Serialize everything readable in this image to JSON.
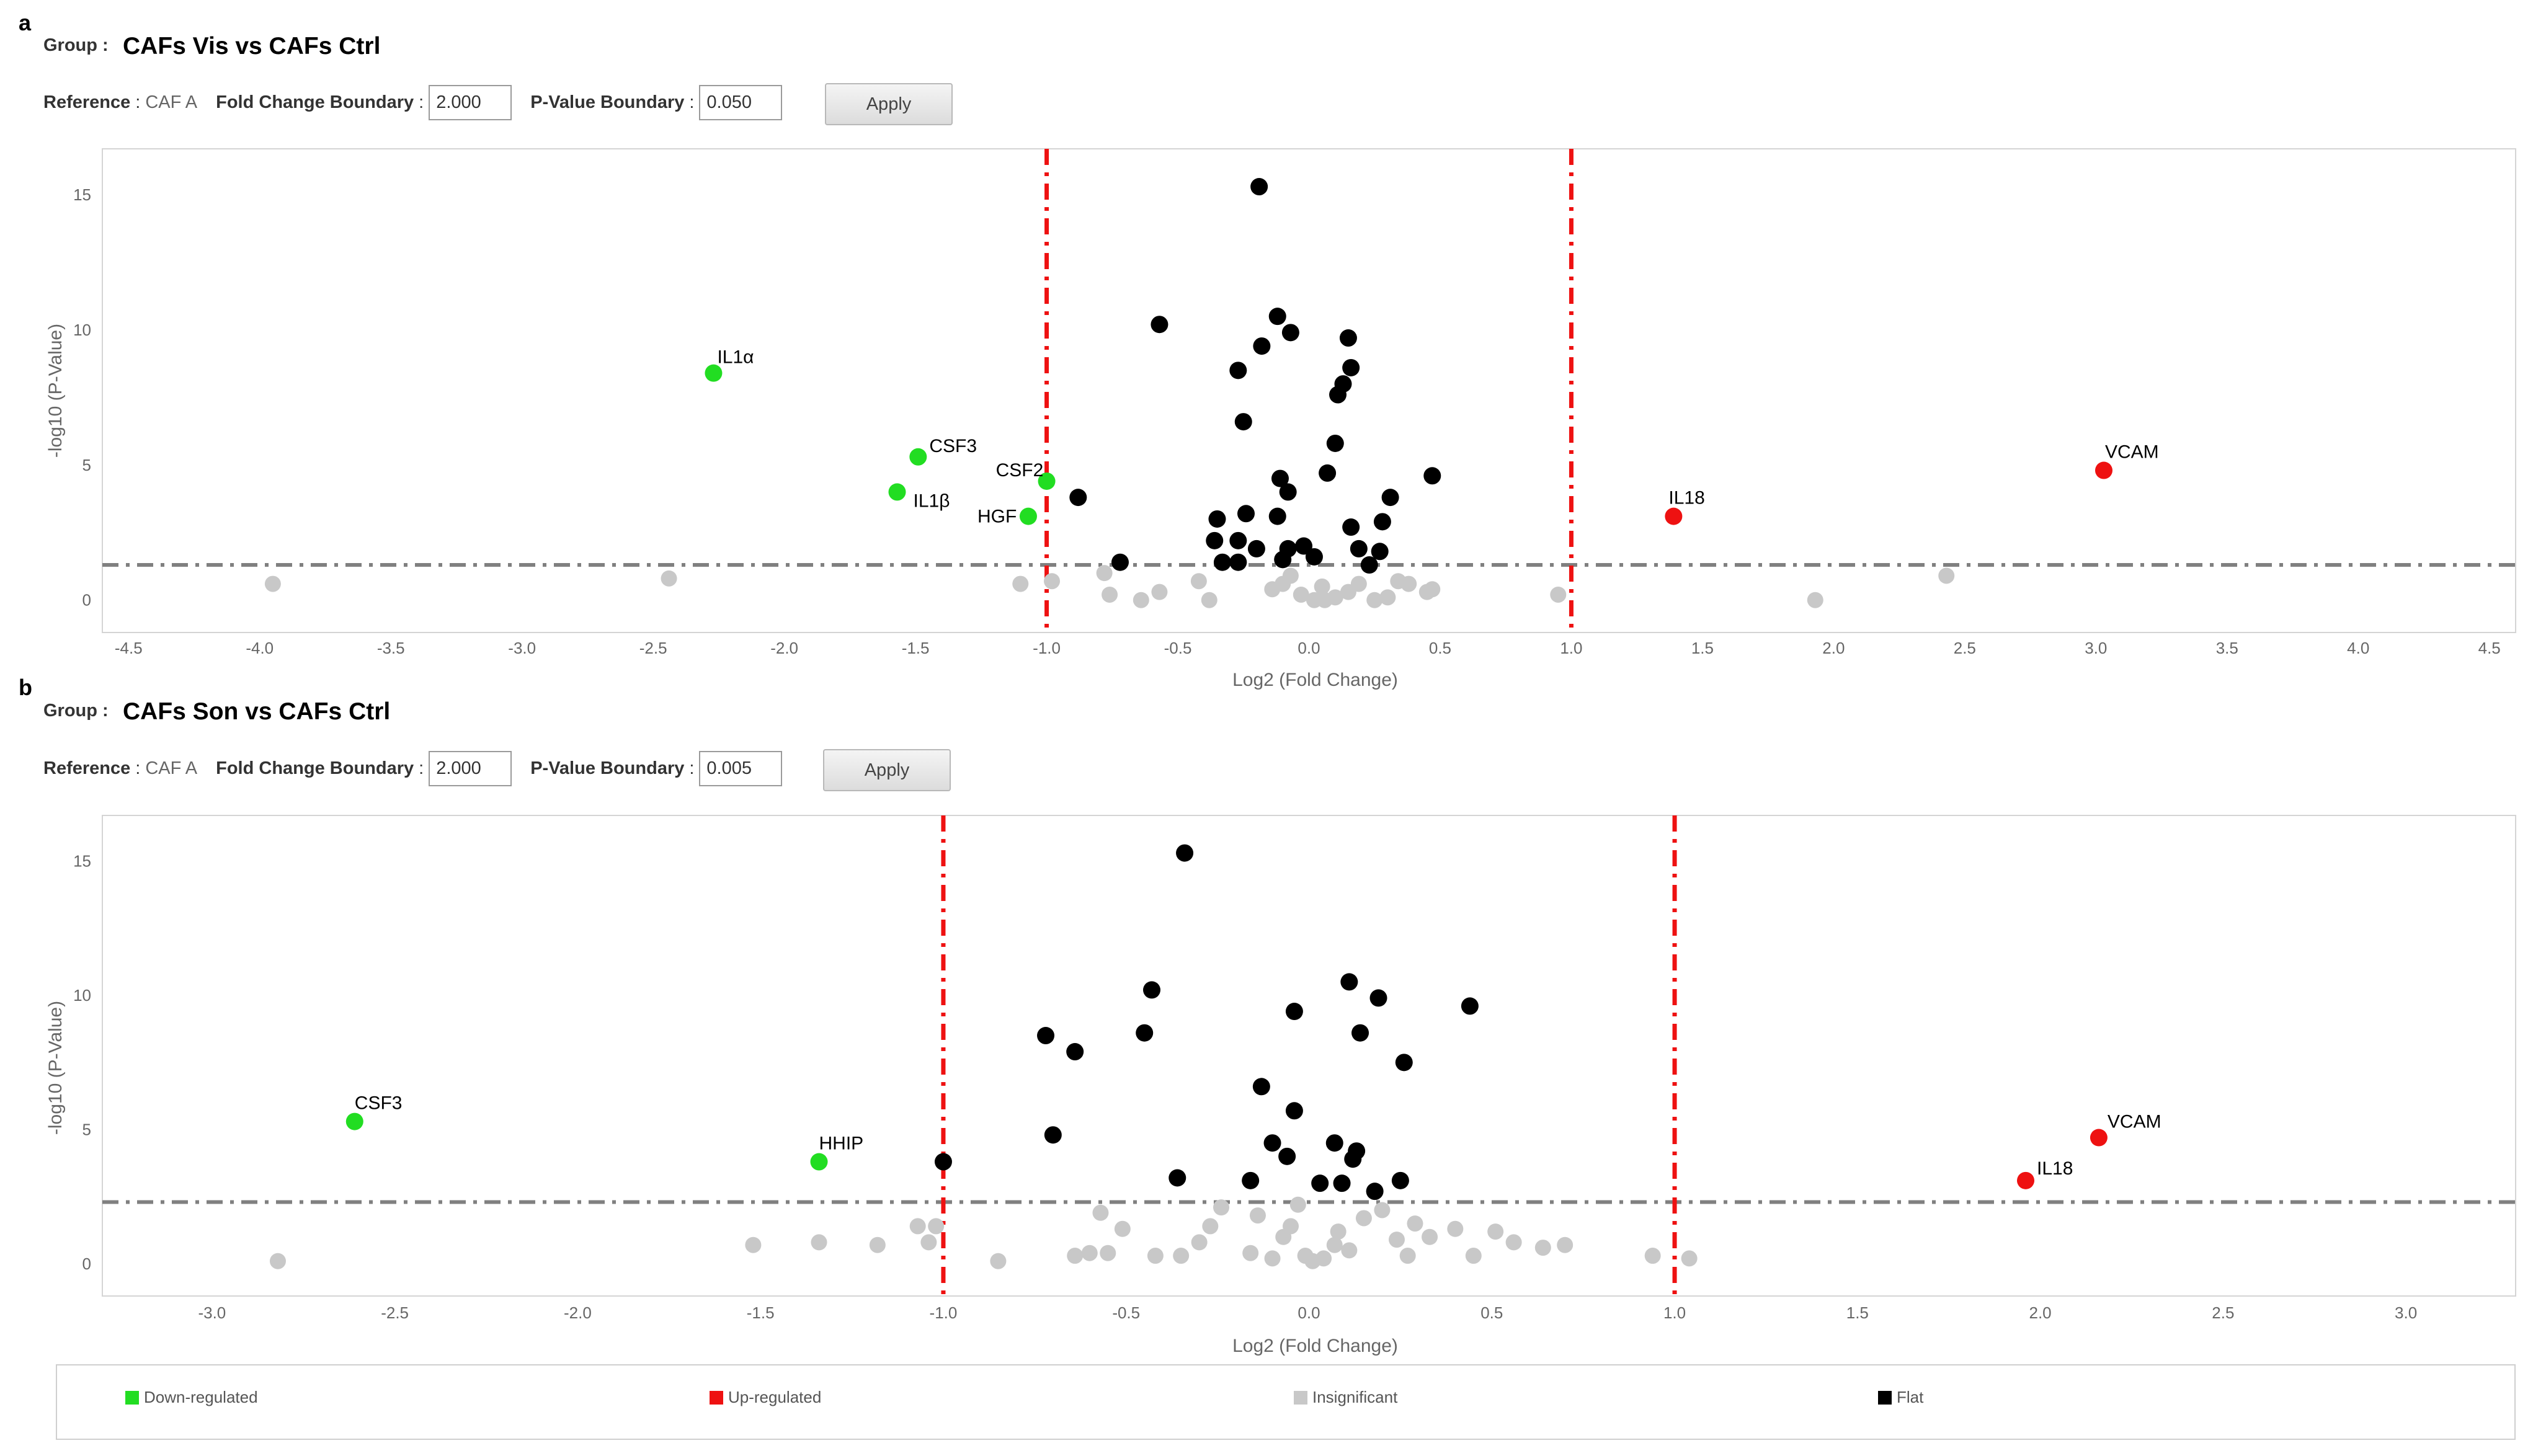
{
  "colors": {
    "down": "#22dd22",
    "up": "#ee1111",
    "insignificant": "#c8c8c8",
    "flat": "#000000",
    "boundary": "#ee1111",
    "threshold": "#808080"
  },
  "panels": [
    {
      "letter": "a",
      "group_label": "Group :",
      "group_title": "CAFs Vis vs CAFs Ctrl",
      "reference_label": "Reference",
      "reference_value": "CAF A",
      "fold_label": "Fold Change Boundary",
      "fold_value": "2.000",
      "pvalue_label": "P-Value Boundary",
      "pvalue_value": "0.050",
      "apply_label": "Apply"
    },
    {
      "letter": "b",
      "group_label": "Group :",
      "group_title": "CAFs Son vs CAFs Ctrl",
      "reference_label": "Reference",
      "reference_value": "CAF A",
      "fold_label": "Fold Change Boundary",
      "fold_value": "2.000",
      "pvalue_label": "P-Value Boundary",
      "pvalue_value": "0.005",
      "apply_label": "Apply"
    }
  ],
  "chart_data": [
    {
      "type": "scatter",
      "xlabel": "Log2 (Fold Change)",
      "ylabel": "-log10 (P-Value)",
      "xlim": [
        -4.6,
        4.6
      ],
      "ylim": [
        -1.2,
        16.7
      ],
      "xticks": [
        "-4.5",
        "-4.0",
        "-3.5",
        "-3.0",
        "-2.5",
        "-2.0",
        "-1.5",
        "-1.0",
        "-0.5",
        "0.0",
        "0.5",
        "1.0",
        "1.5",
        "2.0",
        "2.5",
        "3.0",
        "3.5",
        "4.0",
        "4.5"
      ],
      "yticks": [
        "0",
        "5",
        "10",
        "15"
      ],
      "fold_boundaries": [
        -1.0,
        1.0
      ],
      "p_threshold": 1.3,
      "series": [
        {
          "name": "Down-regulated",
          "category": "down",
          "points": [
            {
              "x": -2.27,
              "y": 8.4,
              "label": "IL1α"
            },
            {
              "x": -1.49,
              "y": 5.3,
              "label": "CSF3"
            },
            {
              "x": -1.57,
              "y": 4.0,
              "label": "IL1β"
            },
            {
              "x": -1.0,
              "y": 4.4,
              "label": "CSF2"
            },
            {
              "x": -1.07,
              "y": 3.1,
              "label": "HGF"
            }
          ]
        },
        {
          "name": "Up-regulated",
          "category": "up",
          "points": [
            {
              "x": 3.03,
              "y": 4.8,
              "label": "VCAM"
            },
            {
              "x": 1.39,
              "y": 3.1,
              "label": "IL18"
            }
          ]
        },
        {
          "name": "Insignificant",
          "category": "insignificant",
          "points": [
            {
              "x": -3.95,
              "y": 0.6
            },
            {
              "x": -2.44,
              "y": 0.8
            },
            {
              "x": -1.1,
              "y": 0.6
            },
            {
              "x": -0.98,
              "y": 0.7
            },
            {
              "x": -0.78,
              "y": 1.0
            },
            {
              "x": -0.76,
              "y": 0.2
            },
            {
              "x": -0.64,
              "y": 0.0
            },
            {
              "x": -0.57,
              "y": 0.3
            },
            {
              "x": -0.42,
              "y": 0.7
            },
            {
              "x": -0.38,
              "y": 0.0
            },
            {
              "x": -0.14,
              "y": 0.4
            },
            {
              "x": -0.1,
              "y": 0.6
            },
            {
              "x": -0.07,
              "y": 0.9
            },
            {
              "x": -0.03,
              "y": 0.2
            },
            {
              "x": 0.02,
              "y": 0.0
            },
            {
              "x": 0.05,
              "y": 0.5
            },
            {
              "x": 0.06,
              "y": 0.0
            },
            {
              "x": 0.1,
              "y": 0.1
            },
            {
              "x": 0.15,
              "y": 0.3
            },
            {
              "x": 0.19,
              "y": 0.6
            },
            {
              "x": 0.25,
              "y": 0.0
            },
            {
              "x": 0.3,
              "y": 0.1
            },
            {
              "x": 0.34,
              "y": 0.7
            },
            {
              "x": 0.38,
              "y": 0.6
            },
            {
              "x": 0.45,
              "y": 0.3
            },
            {
              "x": 0.47,
              "y": 0.4
            },
            {
              "x": 0.95,
              "y": 0.2
            },
            {
              "x": 1.93,
              "y": 0.0
            },
            {
              "x": 2.43,
              "y": 0.9
            }
          ]
        },
        {
          "name": "Flat",
          "category": "flat",
          "points": [
            {
              "x": -0.19,
              "y": 15.3
            },
            {
              "x": -0.12,
              "y": 10.5
            },
            {
              "x": -0.07,
              "y": 9.9
            },
            {
              "x": -0.57,
              "y": 10.2
            },
            {
              "x": -0.18,
              "y": 9.4
            },
            {
              "x": -0.27,
              "y": 8.5
            },
            {
              "x": 0.15,
              "y": 9.7
            },
            {
              "x": 0.16,
              "y": 8.6
            },
            {
              "x": 0.13,
              "y": 8.0
            },
            {
              "x": 0.11,
              "y": 7.6
            },
            {
              "x": -0.25,
              "y": 6.6
            },
            {
              "x": 0.1,
              "y": 5.8
            },
            {
              "x": 0.07,
              "y": 4.7
            },
            {
              "x": -0.11,
              "y": 4.5
            },
            {
              "x": 0.47,
              "y": 4.6
            },
            {
              "x": -0.88,
              "y": 3.8
            },
            {
              "x": -0.08,
              "y": 4.0
            },
            {
              "x": 0.31,
              "y": 3.8
            },
            {
              "x": -0.35,
              "y": 3.0
            },
            {
              "x": -0.24,
              "y": 3.2
            },
            {
              "x": -0.12,
              "y": 3.1
            },
            {
              "x": 0.16,
              "y": 2.7
            },
            {
              "x": 0.28,
              "y": 2.9
            },
            {
              "x": -0.36,
              "y": 2.2
            },
            {
              "x": -0.27,
              "y": 2.2
            },
            {
              "x": -0.2,
              "y": 1.9
            },
            {
              "x": -0.08,
              "y": 1.9
            },
            {
              "x": -0.02,
              "y": 2.0
            },
            {
              "x": 0.02,
              "y": 1.6
            },
            {
              "x": 0.19,
              "y": 1.9
            },
            {
              "x": 0.27,
              "y": 1.8
            },
            {
              "x": 0.23,
              "y": 1.3
            },
            {
              "x": -0.33,
              "y": 1.4
            },
            {
              "x": -0.27,
              "y": 1.4
            },
            {
              "x": -0.1,
              "y": 1.5
            },
            {
              "x": -0.72,
              "y": 1.4
            }
          ]
        }
      ]
    },
    {
      "type": "scatter",
      "xlabel": "Log2 (Fold Change)",
      "ylabel": "-log10 (P-Value)",
      "xlim": [
        -3.3,
        3.3
      ],
      "ylim": [
        -1.2,
        16.7
      ],
      "xticks": [
        "-3.0",
        "-2.5",
        "-2.0",
        "-1.5",
        "-1.0",
        "-0.5",
        "0.0",
        "0.5",
        "1.0",
        "1.5",
        "2.0",
        "2.5",
        "3.0"
      ],
      "yticks": [
        "0",
        "5",
        "10",
        "15"
      ],
      "fold_boundaries": [
        -1.0,
        1.0
      ],
      "p_threshold": 2.3,
      "series": [
        {
          "name": "Down-regulated",
          "category": "down",
          "points": [
            {
              "x": -2.61,
              "y": 5.3,
              "label": "CSF3"
            },
            {
              "x": -1.34,
              "y": 3.8,
              "label": "HHIP"
            }
          ]
        },
        {
          "name": "Up-regulated",
          "category": "up",
          "points": [
            {
              "x": 2.16,
              "y": 4.7,
              "label": "VCAM"
            },
            {
              "x": 1.96,
              "y": 3.1,
              "label": "IL18"
            }
          ]
        },
        {
          "name": "Insignificant",
          "category": "insignificant",
          "points": [
            {
              "x": -2.82,
              "y": 0.1
            },
            {
              "x": -1.52,
              "y": 0.7
            },
            {
              "x": -1.34,
              "y": 0.8
            },
            {
              "x": -1.18,
              "y": 0.7
            },
            {
              "x": -1.07,
              "y": 1.4
            },
            {
              "x": -1.04,
              "y": 0.8
            },
            {
              "x": -1.02,
              "y": 1.4
            },
            {
              "x": -0.85,
              "y": 0.1
            },
            {
              "x": -0.64,
              "y": 0.3
            },
            {
              "x": -0.6,
              "y": 0.4
            },
            {
              "x": -0.57,
              "y": 1.9
            },
            {
              "x": -0.55,
              "y": 0.4
            },
            {
              "x": -0.51,
              "y": 1.3
            },
            {
              "x": -0.42,
              "y": 0.3
            },
            {
              "x": -0.35,
              "y": 0.3
            },
            {
              "x": -0.3,
              "y": 0.8
            },
            {
              "x": -0.27,
              "y": 1.4
            },
            {
              "x": -0.24,
              "y": 2.1
            },
            {
              "x": -0.16,
              "y": 0.4
            },
            {
              "x": -0.14,
              "y": 1.8
            },
            {
              "x": -0.1,
              "y": 0.2
            },
            {
              "x": -0.07,
              "y": 1.0
            },
            {
              "x": -0.05,
              "y": 1.4
            },
            {
              "x": -0.03,
              "y": 2.2
            },
            {
              "x": -0.01,
              "y": 0.3
            },
            {
              "x": 0.01,
              "y": 0.1
            },
            {
              "x": 0.04,
              "y": 0.2
            },
            {
              "x": 0.08,
              "y": 1.2
            },
            {
              "x": 0.07,
              "y": 0.7
            },
            {
              "x": 0.11,
              "y": 0.5
            },
            {
              "x": 0.15,
              "y": 1.7
            },
            {
              "x": 0.2,
              "y": 2.0
            },
            {
              "x": 0.24,
              "y": 0.9
            },
            {
              "x": 0.27,
              "y": 0.3
            },
            {
              "x": 0.29,
              "y": 1.5
            },
            {
              "x": 0.33,
              "y": 1.0
            },
            {
              "x": 0.4,
              "y": 1.3
            },
            {
              "x": 0.45,
              "y": 0.3
            },
            {
              "x": 0.51,
              "y": 1.2
            },
            {
              "x": 0.56,
              "y": 0.8
            },
            {
              "x": 0.64,
              "y": 0.6
            },
            {
              "x": 0.7,
              "y": 0.7
            },
            {
              "x": 0.94,
              "y": 0.3
            },
            {
              "x": 1.04,
              "y": 0.2
            }
          ]
        },
        {
          "name": "Flat",
          "category": "flat",
          "points": [
            {
              "x": -0.34,
              "y": 15.3
            },
            {
              "x": 0.11,
              "y": 10.5
            },
            {
              "x": -0.43,
              "y": 10.2
            },
            {
              "x": 0.19,
              "y": 9.9
            },
            {
              "x": 0.44,
              "y": 9.6
            },
            {
              "x": -0.04,
              "y": 9.4
            },
            {
              "x": -0.72,
              "y": 8.5
            },
            {
              "x": -0.45,
              "y": 8.6
            },
            {
              "x": 0.14,
              "y": 8.6
            },
            {
              "x": -0.64,
              "y": 7.9
            },
            {
              "x": 0.26,
              "y": 7.5
            },
            {
              "x": -0.13,
              "y": 6.6
            },
            {
              "x": -0.04,
              "y": 5.7
            },
            {
              "x": -0.7,
              "y": 4.8
            },
            {
              "x": -0.1,
              "y": 4.5
            },
            {
              "x": 0.07,
              "y": 4.5
            },
            {
              "x": 0.13,
              "y": 4.2
            },
            {
              "x": -0.06,
              "y": 4.0
            },
            {
              "x": 0.12,
              "y": 3.9
            },
            {
              "x": -1.0,
              "y": 3.8
            },
            {
              "x": -0.36,
              "y": 3.2
            },
            {
              "x": -0.16,
              "y": 3.1
            },
            {
              "x": 0.03,
              "y": 3.0
            },
            {
              "x": 0.09,
              "y": 3.0
            },
            {
              "x": 0.25,
              "y": 3.1
            },
            {
              "x": 0.18,
              "y": 2.7
            }
          ]
        }
      ]
    }
  ],
  "legend": [
    {
      "label": "Down-regulated",
      "category": "down"
    },
    {
      "label": "Up-regulated",
      "category": "up"
    },
    {
      "label": "Insignificant",
      "category": "insignificant"
    },
    {
      "label": "Flat",
      "category": "flat"
    }
  ]
}
